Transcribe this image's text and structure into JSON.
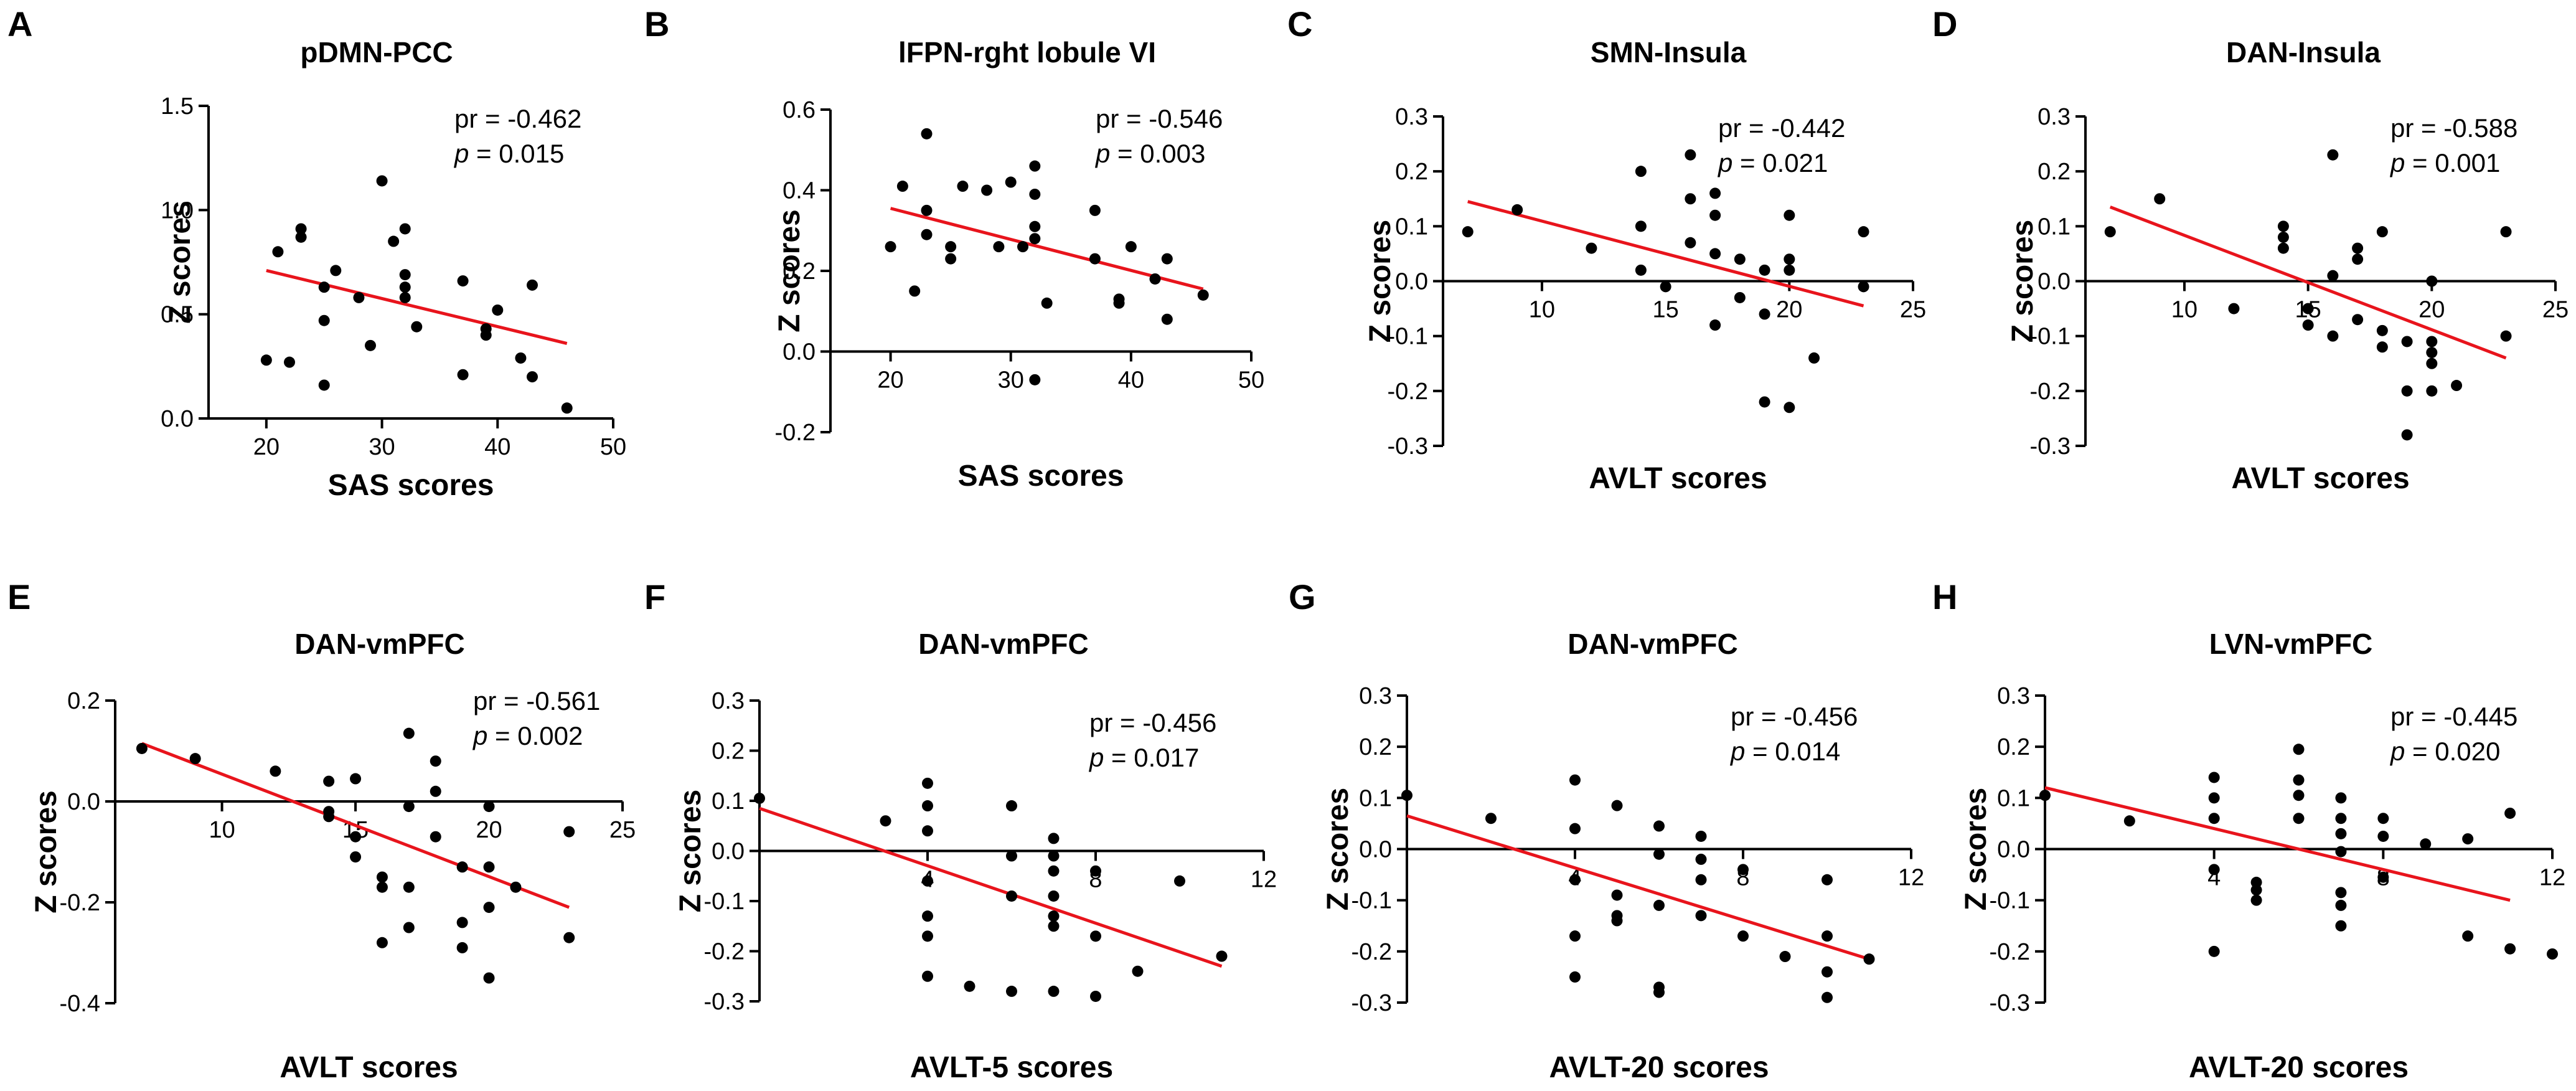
{
  "colors": {
    "fit_line": "#e8141c",
    "points": "#000000",
    "axes": "#000000"
  },
  "chart_data": [
    {
      "panel": "A",
      "type": "scatter",
      "title": "pDMN-PCC",
      "xlabel": "SAS scores",
      "ylabel": "Z scores",
      "xlim": [
        15,
        50
      ],
      "ylim": [
        0.0,
        1.5
      ],
      "xticks": [
        "20",
        "30",
        "40",
        "50"
      ],
      "xtick_values": [
        20,
        30,
        40,
        50
      ],
      "yticks": [
        "0.0",
        "0.5",
        "1.0",
        "1.5"
      ],
      "ytick_values": [
        0.0,
        0.5,
        1.0,
        1.5
      ],
      "stats": {
        "pr": "pr = -0.462",
        "p_symbol": "p",
        "p_value": " = 0.015"
      },
      "fit": {
        "x": [
          20,
          46
        ],
        "y": [
          0.71,
          0.36
        ]
      },
      "points": [
        [
          20,
          0.28
        ],
        [
          21,
          0.8
        ],
        [
          22,
          0.27
        ],
        [
          23,
          0.87
        ],
        [
          23,
          0.91
        ],
        [
          25,
          0.63
        ],
        [
          25,
          0.47
        ],
        [
          25,
          0.16
        ],
        [
          26,
          0.71
        ],
        [
          28,
          0.58
        ],
        [
          29,
          0.35
        ],
        [
          30,
          1.14
        ],
        [
          31,
          0.85
        ],
        [
          32,
          0.91
        ],
        [
          32,
          0.69
        ],
        [
          32,
          0.63
        ],
        [
          32,
          0.58
        ],
        [
          33,
          0.44
        ],
        [
          37,
          0.66
        ],
        [
          37,
          0.21
        ],
        [
          39,
          0.43
        ],
        [
          39,
          0.4
        ],
        [
          40,
          0.52
        ],
        [
          42,
          0.29
        ],
        [
          43,
          0.64
        ],
        [
          43,
          0.2
        ],
        [
          46,
          0.05
        ]
      ]
    },
    {
      "panel": "B",
      "type": "scatter",
      "title": "lFPN-rght lobule VI",
      "xlabel": "SAS scores",
      "ylabel": "Z scores",
      "xlim": [
        15,
        50
      ],
      "ylim": [
        -0.2,
        0.6
      ],
      "xticks": [
        "20",
        "30",
        "40",
        "50"
      ],
      "xtick_values": [
        20,
        30,
        40,
        50
      ],
      "yticks": [
        "-0.2",
        "0.0",
        "0.2",
        "0.4",
        "0.6"
      ],
      "ytick_values": [
        -0.2,
        0.0,
        0.2,
        0.4,
        0.6
      ],
      "stats": {
        "pr": "pr = -0.546",
        "p_symbol": "p",
        "p_value": " = 0.003"
      },
      "fit": {
        "x": [
          20,
          46
        ],
        "y": [
          0.355,
          0.155
        ]
      },
      "points": [
        [
          20,
          0.26
        ],
        [
          21,
          0.41
        ],
        [
          22,
          0.15
        ],
        [
          23,
          0.54
        ],
        [
          23,
          0.35
        ],
        [
          23,
          0.29
        ],
        [
          25,
          0.26
        ],
        [
          25,
          0.23
        ],
        [
          26,
          0.41
        ],
        [
          28,
          0.4
        ],
        [
          29,
          0.26
        ],
        [
          30,
          0.42
        ],
        [
          31,
          0.26
        ],
        [
          32,
          0.46
        ],
        [
          32,
          0.39
        ],
        [
          32,
          0.31
        ],
        [
          32,
          0.28
        ],
        [
          32,
          -0.07
        ],
        [
          33,
          0.12
        ],
        [
          37,
          0.35
        ],
        [
          37,
          0.23
        ],
        [
          39,
          0.13
        ],
        [
          39,
          0.12
        ],
        [
          40,
          0.26
        ],
        [
          42,
          0.18
        ],
        [
          43,
          0.23
        ],
        [
          43,
          0.08
        ],
        [
          46,
          0.14
        ]
      ]
    },
    {
      "panel": "C",
      "type": "scatter",
      "title": "SMN-Insula",
      "xlabel": "AVLT scores",
      "ylabel": "Z scores",
      "xlim": [
        6,
        25
      ],
      "ylim": [
        -0.3,
        0.3
      ],
      "xticks": [
        "10",
        "15",
        "20",
        "25"
      ],
      "xtick_values": [
        10,
        15,
        20,
        25
      ],
      "yticks": [
        "-0.3",
        "-0.2",
        "-0.1",
        "0.0",
        "0.1",
        "0.2",
        "0.3"
      ],
      "ytick_values": [
        -0.3,
        -0.2,
        -0.1,
        0.0,
        0.1,
        0.2,
        0.3
      ],
      "stats": {
        "pr": "pr = -0.442",
        "p_symbol": "p",
        "p_value": " = 0.021"
      },
      "fit": {
        "x": [
          7,
          23
        ],
        "y": [
          0.145,
          -0.045
        ]
      },
      "points": [
        [
          7,
          0.09
        ],
        [
          9,
          0.13
        ],
        [
          12,
          0.06
        ],
        [
          14,
          0.2
        ],
        [
          14,
          0.1
        ],
        [
          14,
          0.02
        ],
        [
          15,
          -0.01
        ],
        [
          16,
          0.23
        ],
        [
          16,
          0.15
        ],
        [
          16,
          0.07
        ],
        [
          17,
          0.16
        ],
        [
          17,
          0.12
        ],
        [
          17,
          0.05
        ],
        [
          17,
          -0.08
        ],
        [
          18,
          0.04
        ],
        [
          18,
          -0.03
        ],
        [
          19,
          0.02
        ],
        [
          19,
          -0.06
        ],
        [
          19,
          -0.22
        ],
        [
          20,
          0.12
        ],
        [
          20,
          0.04
        ],
        [
          20,
          0.02
        ],
        [
          20,
          -0.23
        ],
        [
          21,
          -0.14
        ],
        [
          23,
          0.09
        ],
        [
          23,
          -0.01
        ]
      ]
    },
    {
      "panel": "D",
      "type": "scatter",
      "title": "DAN-Insula",
      "xlabel": "AVLT scores",
      "ylabel": "Z scores",
      "xlim": [
        6,
        25
      ],
      "ylim": [
        -0.3,
        0.3
      ],
      "xticks": [
        "10",
        "15",
        "20",
        "25"
      ],
      "xtick_values": [
        10,
        15,
        20,
        25
      ],
      "yticks": [
        "-0.3",
        "-0.2",
        "-0.1",
        "0.0",
        "0.1",
        "0.2",
        "0.3"
      ],
      "ytick_values": [
        -0.3,
        -0.2,
        -0.1,
        0.0,
        0.1,
        0.2,
        0.3
      ],
      "stats": {
        "pr": "pr = -0.588",
        "p_symbol": "p",
        "p_value": " = 0.001"
      },
      "fit": {
        "x": [
          7,
          23
        ],
        "y": [
          0.135,
          -0.14
        ]
      },
      "points": [
        [
          7,
          0.09
        ],
        [
          9,
          0.15
        ],
        [
          12,
          -0.05
        ],
        [
          14,
          0.1
        ],
        [
          14,
          0.08
        ],
        [
          14,
          0.06
        ],
        [
          15,
          -0.05
        ],
        [
          15,
          -0.08
        ],
        [
          16,
          0.23
        ],
        [
          16,
          0.01
        ],
        [
          16,
          -0.1
        ],
        [
          17,
          0.06
        ],
        [
          17,
          0.04
        ],
        [
          17,
          -0.07
        ],
        [
          18,
          0.09
        ],
        [
          18,
          -0.09
        ],
        [
          18,
          -0.12
        ],
        [
          19,
          -0.11
        ],
        [
          19,
          -0.2
        ],
        [
          19,
          -0.28
        ],
        [
          20,
          0.0
        ],
        [
          20,
          -0.11
        ],
        [
          20,
          -0.13
        ],
        [
          20,
          -0.15
        ],
        [
          20,
          -0.2
        ],
        [
          21,
          -0.19
        ],
        [
          23,
          0.09
        ],
        [
          23,
          -0.1
        ]
      ]
    },
    {
      "panel": "E",
      "type": "scatter",
      "title": "DAN-vmPFC",
      "xlabel": "AVLT scores",
      "ylabel": "Z scores",
      "xlim": [
        6,
        25
      ],
      "ylim": [
        -0.4,
        0.2
      ],
      "xticks": [
        "10",
        "15",
        "20",
        "25"
      ],
      "xtick_values": [
        10,
        15,
        20,
        25
      ],
      "yticks": [
        "-0.4",
        "-0.2",
        "0.0",
        "0.2"
      ],
      "ytick_values": [
        -0.4,
        -0.2,
        0.0,
        0.2
      ],
      "stats": {
        "pr": "pr = -0.561",
        "p_symbol": "p",
        "p_value": " = 0.002"
      },
      "fit": {
        "x": [
          7,
          23
        ],
        "y": [
          0.115,
          -0.21
        ]
      },
      "points": [
        [
          7,
          0.105
        ],
        [
          9,
          0.085
        ],
        [
          12,
          0.06
        ],
        [
          14,
          0.04
        ],
        [
          14,
          -0.02
        ],
        [
          14,
          -0.03
        ],
        [
          15,
          0.045
        ],
        [
          15,
          -0.11
        ],
        [
          15,
          -0.07
        ],
        [
          16,
          -0.15
        ],
        [
          16,
          -0.17
        ],
        [
          16,
          -0.28
        ],
        [
          17,
          0.135
        ],
        [
          17,
          -0.01
        ],
        [
          17,
          -0.17
        ],
        [
          17,
          -0.25
        ],
        [
          18,
          0.08
        ],
        [
          18,
          0.02
        ],
        [
          18,
          -0.07
        ],
        [
          19,
          -0.13
        ],
        [
          19,
          -0.24
        ],
        [
          19,
          -0.29
        ],
        [
          20,
          -0.01
        ],
        [
          20,
          -0.13
        ],
        [
          20,
          -0.21
        ],
        [
          20,
          -0.35
        ],
        [
          21,
          -0.17
        ],
        [
          23,
          -0.06
        ],
        [
          23,
          -0.27
        ]
      ]
    },
    {
      "panel": "F",
      "type": "scatter",
      "title": "DAN-vmPFC",
      "xlabel": "AVLT-5 scores",
      "ylabel": "Z scores",
      "xlim": [
        0,
        12
      ],
      "ylim": [
        -0.3,
        0.3
      ],
      "xticks": [
        "4",
        "8",
        "12"
      ],
      "xtick_values": [
        4,
        8,
        12
      ],
      "yticks": [
        "-0.3",
        "-0.2",
        "-0.1",
        "0.0",
        "0.1",
        "0.2",
        "0.3"
      ],
      "ytick_values": [
        -0.3,
        -0.2,
        -0.1,
        0.0,
        0.1,
        0.2,
        0.3
      ],
      "stats": {
        "pr": "pr = -0.456",
        "p_symbol": "p",
        "p_value": " = 0.017"
      },
      "fit": {
        "x": [
          0,
          11
        ],
        "y": [
          0.085,
          -0.23
        ]
      },
      "points": [
        [
          0,
          0.105
        ],
        [
          3,
          0.06
        ],
        [
          4,
          0.135
        ],
        [
          4,
          0.09
        ],
        [
          4,
          0.04
        ],
        [
          4,
          -0.06
        ],
        [
          4,
          -0.13
        ],
        [
          4,
          -0.17
        ],
        [
          4,
          -0.25
        ],
        [
          5,
          -0.27
        ],
        [
          6,
          0.09
        ],
        [
          6,
          -0.01
        ],
        [
          6,
          -0.09
        ],
        [
          6,
          -0.28
        ],
        [
          7,
          0.025
        ],
        [
          7,
          -0.01
        ],
        [
          7,
          -0.04
        ],
        [
          7,
          -0.09
        ],
        [
          7,
          -0.13
        ],
        [
          7,
          -0.15
        ],
        [
          7,
          -0.28
        ],
        [
          8,
          -0.04
        ],
        [
          8,
          -0.17
        ],
        [
          8,
          -0.29
        ],
        [
          9,
          -0.24
        ],
        [
          10,
          -0.06
        ],
        [
          11,
          -0.21
        ]
      ]
    },
    {
      "panel": "G",
      "type": "scatter",
      "title": "DAN-vmPFC",
      "xlabel": "AVLT-20 scores",
      "ylabel": "Z scores",
      "xlim": [
        0,
        12
      ],
      "ylim": [
        -0.3,
        0.3
      ],
      "xticks": [
        "4",
        "8",
        "12"
      ],
      "xtick_values": [
        4,
        8,
        12
      ],
      "yticks": [
        "-0.3",
        "-0.2",
        "-0.1",
        "0.0",
        "0.1",
        "0.2",
        "0.3"
      ],
      "ytick_values": [
        -0.3,
        -0.2,
        -0.1,
        0.0,
        0.1,
        0.2,
        0.3
      ],
      "stats": {
        "pr": "pr = -0.456",
        "p_symbol": "p",
        "p_value": " = 0.014"
      },
      "fit": {
        "x": [
          0,
          11
        ],
        "y": [
          0.065,
          -0.215
        ]
      },
      "points": [
        [
          0,
          0.105
        ],
        [
          2,
          0.06
        ],
        [
          4,
          0.135
        ],
        [
          4,
          0.04
        ],
        [
          4,
          -0.06
        ],
        [
          4,
          -0.17
        ],
        [
          4,
          -0.25
        ],
        [
          5,
          0.085
        ],
        [
          5,
          -0.09
        ],
        [
          5,
          -0.13
        ],
        [
          5,
          -0.14
        ],
        [
          6,
          0.045
        ],
        [
          6,
          -0.01
        ],
        [
          6,
          -0.11
        ],
        [
          6,
          -0.27
        ],
        [
          6,
          -0.28
        ],
        [
          7,
          0.025
        ],
        [
          7,
          -0.02
        ],
        [
          7,
          -0.06
        ],
        [
          7,
          -0.13
        ],
        [
          8,
          -0.04
        ],
        [
          8,
          -0.17
        ],
        [
          9,
          -0.21
        ],
        [
          10,
          -0.06
        ],
        [
          10,
          -0.17
        ],
        [
          10,
          -0.24
        ],
        [
          10,
          -0.29
        ],
        [
          11,
          -0.215
        ]
      ]
    },
    {
      "panel": "H",
      "type": "scatter",
      "title": "LVN-vmPFC",
      "xlabel": "AVLT-20 scores",
      "ylabel": "Z scores",
      "xlim": [
        0,
        12
      ],
      "ylim": [
        -0.3,
        0.3
      ],
      "xticks": [
        "4",
        "8",
        "12"
      ],
      "xtick_values": [
        4,
        8,
        12
      ],
      "yticks": [
        "-0.3",
        "-0.2",
        "-0.1",
        "0.0",
        "0.1",
        "0.2",
        "0.3"
      ],
      "ytick_values": [
        -0.3,
        -0.2,
        -0.1,
        0.0,
        0.1,
        0.2,
        0.3
      ],
      "stats": {
        "pr": "pr = -0.445",
        "p_symbol": "p",
        "p_value": " = 0.020"
      },
      "fit": {
        "x": [
          0,
          11
        ],
        "y": [
          0.12,
          -0.1
        ]
      },
      "points": [
        [
          0,
          0.105
        ],
        [
          2,
          0.055
        ],
        [
          4,
          0.14
        ],
        [
          4,
          0.1
        ],
        [
          4,
          0.06
        ],
        [
          4,
          -0.04
        ],
        [
          4,
          -0.2
        ],
        [
          5,
          -0.065
        ],
        [
          5,
          -0.08
        ],
        [
          5,
          -0.1
        ],
        [
          6,
          0.195
        ],
        [
          6,
          0.135
        ],
        [
          6,
          0.105
        ],
        [
          6,
          0.06
        ],
        [
          7,
          0.1
        ],
        [
          7,
          0.06
        ],
        [
          7,
          0.03
        ],
        [
          7,
          -0.005
        ],
        [
          7,
          -0.085
        ],
        [
          7,
          -0.11
        ],
        [
          7,
          -0.15
        ],
        [
          8,
          0.06
        ],
        [
          8,
          0.025
        ],
        [
          8,
          -0.055
        ],
        [
          9,
          0.01
        ],
        [
          10,
          0.02
        ],
        [
          10,
          -0.17
        ],
        [
          11,
          0.07
        ],
        [
          11,
          -0.195
        ],
        [
          12,
          -0.205
        ]
      ]
    }
  ]
}
